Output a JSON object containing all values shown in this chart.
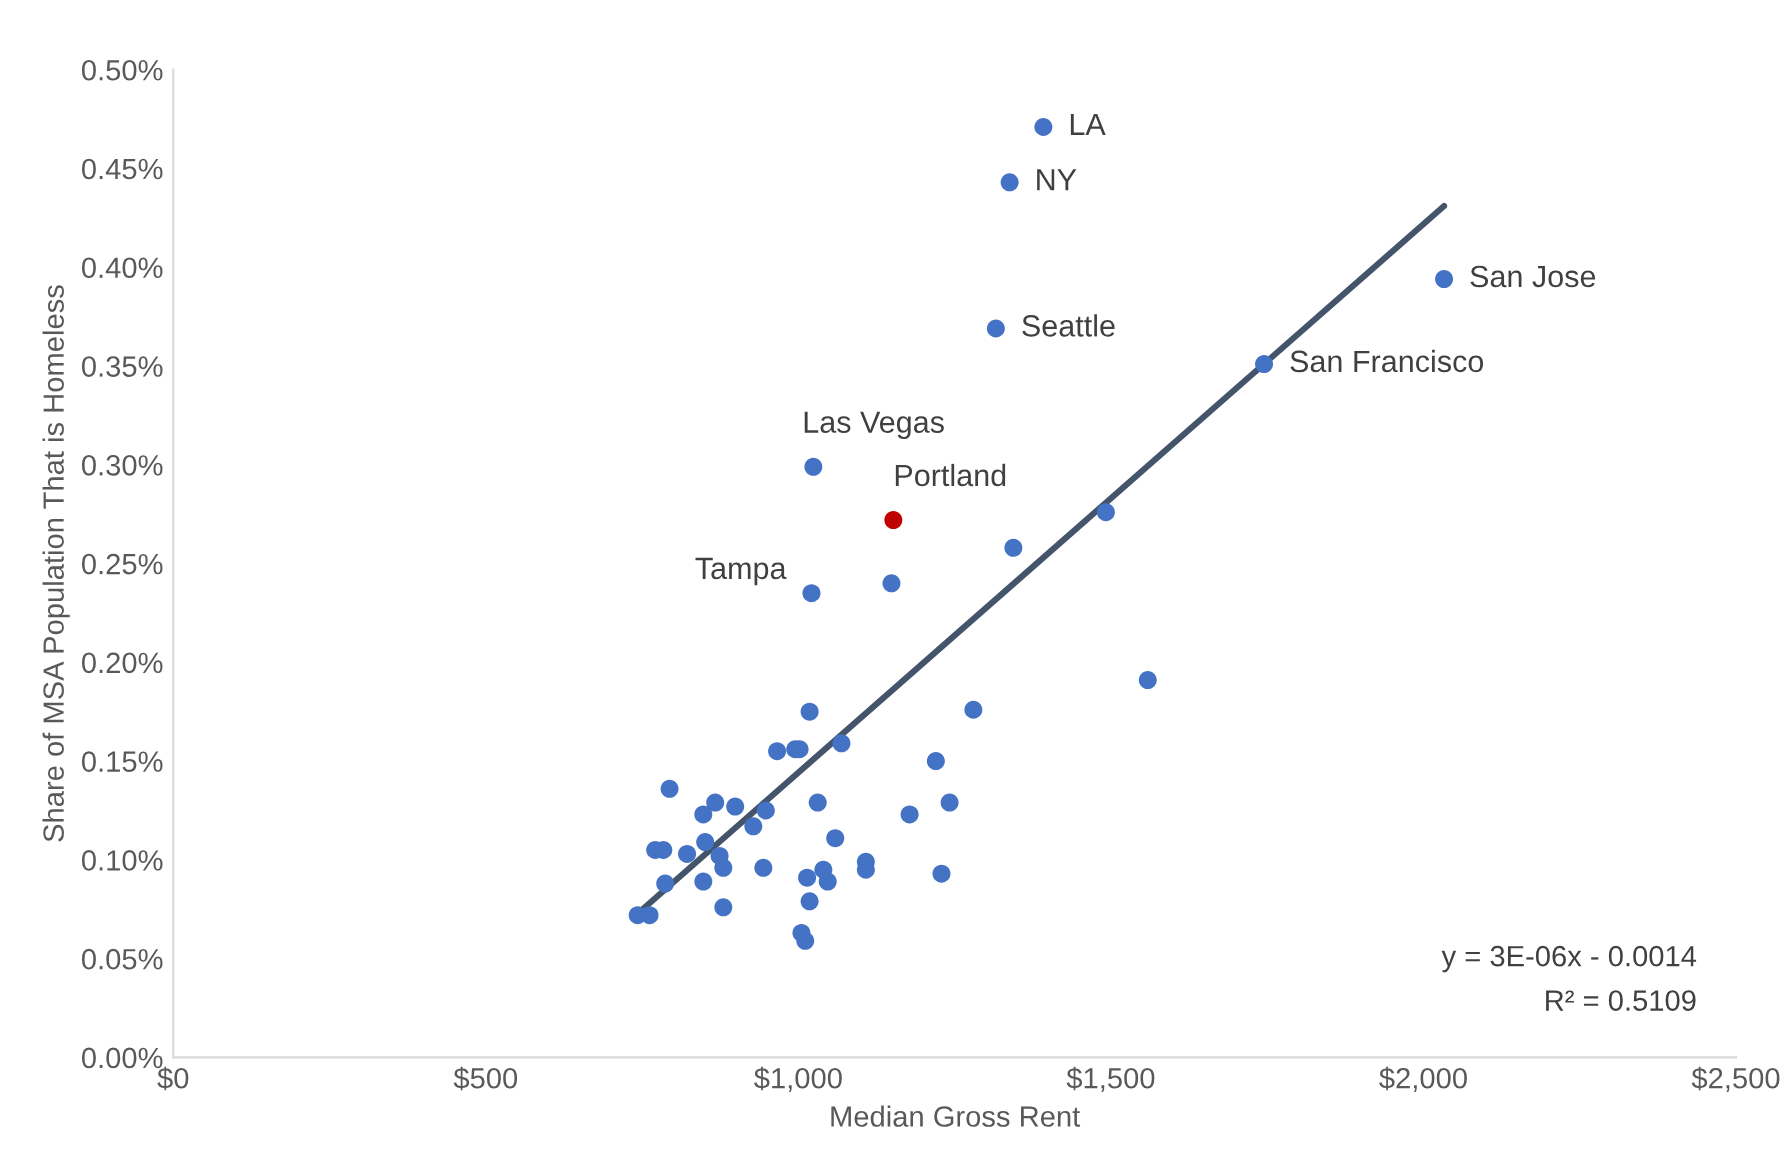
{
  "chart_data": {
    "type": "scatter",
    "xlabel": "Median Gross Rent",
    "ylabel": "Share of MSA Population That is Homeless",
    "series": [
      {
        "color": "#4472c4",
        "x": [
          1392,
          1338,
          1316,
          2033,
          1745,
          1024,
          1344,
          1492,
          1021,
          1149,
          1559,
          1018,
          1280,
          966,
          995,
          1002,
          1069,
          1220,
          794,
          867,
          848,
          899,
          948,
          1031,
          1178,
          1242,
          928,
          851,
          771,
          784,
          822,
          874,
          880,
          1059,
          944,
          1040,
          1047,
          1014,
          1108,
          1108,
          1229,
          787,
          848,
          1018,
          880,
          743,
          762,
          1005,
          1011
        ],
        "values": [
          0.471,
          0.443,
          0.369,
          0.394,
          0.351,
          0.299,
          0.258,
          0.276,
          0.235,
          0.24,
          0.191,
          0.175,
          0.176,
          0.155,
          0.156,
          0.156,
          0.159,
          0.15,
          0.136,
          0.129,
          0.123,
          0.127,
          0.125,
          0.129,
          0.123,
          0.129,
          0.117,
          0.109,
          0.105,
          0.105,
          0.103,
          0.102,
          0.096,
          0.111,
          0.096,
          0.095,
          0.089,
          0.091,
          0.099,
          0.095,
          0.093,
          0.088,
          0.089,
          0.079,
          0.076,
          0.072,
          0.072,
          0.063,
          0.059
        ]
      },
      {
        "color": "#c00000",
        "x": [
          1152
        ],
        "values": [
          0.272
        ]
      },
      {
        "type": "line",
        "marker": "none",
        "color": "#44546a",
        "x": [
          740,
          2033
        ],
        "values": [
          0.072,
          0.431
        ]
      }
    ],
    "annotations": [
      {
        "text": "LA",
        "x": 1392,
        "y": 0.471
      },
      {
        "text": "NY",
        "x": 1338,
        "y": 0.443
      },
      {
        "text": "Seattle",
        "x": 1316,
        "y": 0.369
      },
      {
        "text": "San Jose",
        "x": 2033,
        "y": 0.394
      },
      {
        "text": "San Francisco",
        "x": 1745,
        "y": 0.351
      },
      {
        "text": "Las Vegas",
        "x": 1024,
        "y": 0.299
      },
      {
        "text": "Portland",
        "x": 1152,
        "y": 0.272
      },
      {
        "text": "Tampa",
        "x": 1021,
        "y": 0.235
      },
      "y = 3E-06x - 0.0014",
      "R² = 0.5109"
    ],
    "marker": "circle",
    "grid": false,
    "legend": false,
    "xlim": [
      0,
      2500
    ],
    "xticks": [
      {
        "value": 0,
        "label": "$0"
      },
      {
        "value": 500,
        "label": "$500"
      },
      {
        "value": 1000,
        "label": "$1,000"
      },
      {
        "value": 1500,
        "label": "$1,500"
      },
      {
        "value": 2000,
        "label": "$2,000"
      },
      {
        "value": 2500,
        "label": "$2,500"
      }
    ],
    "ylim": [
      0,
      0.5
    ],
    "yticks": [
      {
        "value": 0,
        "label": "0.00%"
      },
      {
        "value": 0.05,
        "label": "0.05%"
      },
      {
        "value": 0.1,
        "label": "0.10%"
      },
      {
        "value": 0.15,
        "label": "0.15%"
      },
      {
        "value": 0.2,
        "label": "0.20%"
      },
      {
        "value": 0.25,
        "label": "0.25%"
      },
      {
        "value": 0.3,
        "label": "0.30%"
      },
      {
        "value": 0.35,
        "label": "0.35%"
      },
      {
        "value": 0.4,
        "label": "0.40%"
      },
      {
        "value": 0.45,
        "label": "0.45%"
      },
      {
        "value": 0.5,
        "label": "0.50%"
      }
    ]
  }
}
